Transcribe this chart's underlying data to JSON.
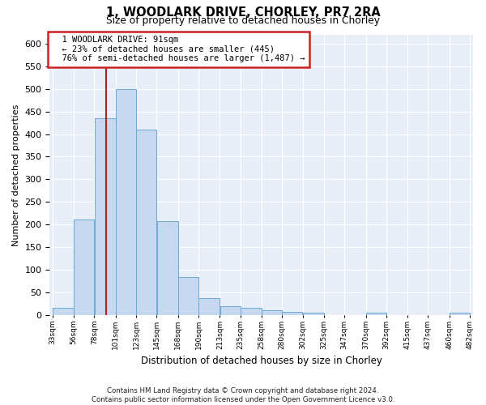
{
  "title_line1": "1, WOODLARK DRIVE, CHORLEY, PR7 2RA",
  "title_line2": "Size of property relative to detached houses in Chorley",
  "xlabel": "Distribution of detached houses by size in Chorley",
  "ylabel": "Number of detached properties",
  "bar_color": "#c5d8f0",
  "bar_edge_color": "#6aaad4",
  "annotation_line": "1 WOODLARK DRIVE: 91sqm",
  "annotation_smaller": "← 23% of detached houses are smaller (445)",
  "annotation_larger": "76% of semi-detached houses are larger (1,487) →",
  "property_size": 91,
  "vline_color": "#aa2222",
  "bin_edges": [
    33,
    56,
    78,
    101,
    123,
    145,
    168,
    190,
    213,
    235,
    258,
    280,
    302,
    325,
    347,
    370,
    392,
    415,
    437,
    460,
    482
  ],
  "bin_labels": [
    "33sqm",
    "56sqm",
    "78sqm",
    "101sqm",
    "123sqm",
    "145sqm",
    "168sqm",
    "190sqm",
    "213sqm",
    "235sqm",
    "258sqm",
    "280sqm",
    "302sqm",
    "325sqm",
    "347sqm",
    "370sqm",
    "392sqm",
    "415sqm",
    "437sqm",
    "460sqm",
    "482sqm"
  ],
  "bar_heights": [
    17,
    211,
    435,
    500,
    410,
    208,
    84,
    38,
    20,
    17,
    12,
    7,
    5,
    0,
    0,
    5,
    0,
    0,
    0,
    5
  ],
  "ylim": [
    0,
    620
  ],
  "yticks": [
    0,
    50,
    100,
    150,
    200,
    250,
    300,
    350,
    400,
    450,
    500,
    550,
    600
  ],
  "footer_line1": "Contains HM Land Registry data © Crown copyright and database right 2024.",
  "footer_line2": "Contains public sector information licensed under the Open Government Licence v3.0.",
  "background_color": "#ffffff",
  "plot_bg_color": "#e8eef8"
}
